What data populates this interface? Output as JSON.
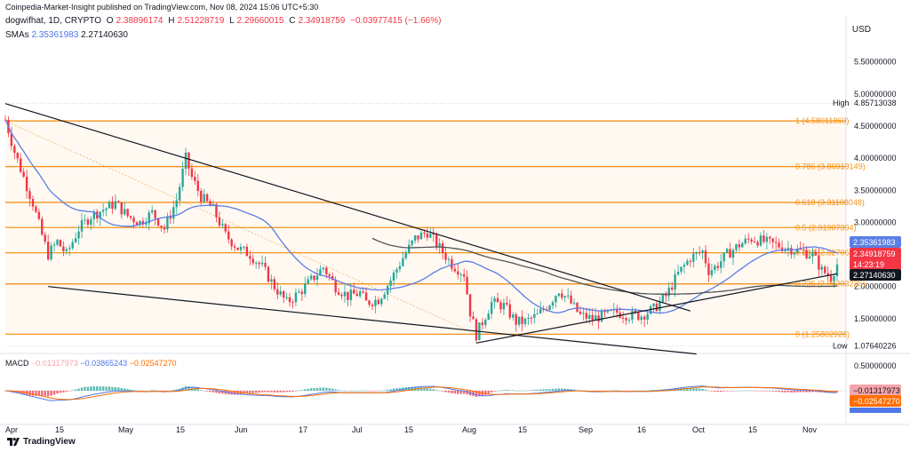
{
  "header": {
    "published": "Coinpedia-Market-Insight published on TradingView.com, Nov 08, 2024 15:06 UTC+5:30",
    "symbol": "dogwifhat, 1D, CRYPTO",
    "open_label": "O",
    "open": "2.38896174",
    "high_label": "H",
    "high": "2.51228719",
    "low_label": "L",
    "low": "2.29660015",
    "close_label": "C",
    "close": "2.34918759",
    "change": "−0.03977415 (−1.66%)",
    "sma_label": "SMAs",
    "sma1": "2.35361983",
    "sma2": "2.27140630",
    "currency": "USD"
  },
  "macd": {
    "label": "MACD",
    "hist": "−0.01317973",
    "macd": "−0.03865243",
    "signal": "−0.02547270"
  },
  "brand": {
    "name": "TradingView"
  },
  "colors": {
    "bull": "#26a69a",
    "bear": "#f23645",
    "sma_fast": "#5b7ee5",
    "sma_slow": "#545454",
    "fib": "#f7931a",
    "trend": "#131722",
    "macd_line": "#4f77e8",
    "signal_line": "#ff6d00"
  },
  "chart_data": {
    "type": "line",
    "x_ticks": [
      "Apr",
      "15",
      "May",
      "15",
      "Jun",
      "17",
      "Jul",
      "15",
      "Aug",
      "15",
      "Sep",
      "16",
      "Oct",
      "15",
      "Nov"
    ],
    "y_ticks": [
      "5.50000000",
      "5.00000000",
      "4.50000000",
      "4.00000000",
      "3.50000000",
      "3.00000000",
      "2.50000000",
      "2.00000000",
      "1.50000000"
    ],
    "macd_y_ticks": [
      "0.50000000"
    ],
    "ylim": [
      1.0,
      5.8
    ],
    "price_path": [
      [
        0,
        4.6
      ],
      [
        3,
        4.1
      ],
      [
        6,
        3.7
      ],
      [
        9,
        3.3
      ],
      [
        12,
        2.8
      ],
      [
        14,
        2.5
      ],
      [
        17,
        2.7
      ],
      [
        20,
        2.5
      ],
      [
        24,
        2.9
      ],
      [
        28,
        3.1
      ],
      [
        32,
        3.2
      ],
      [
        36,
        3.3
      ],
      [
        40,
        3.1
      ],
      [
        44,
        3.0
      ],
      [
        48,
        3.15
      ],
      [
        52,
        2.9
      ],
      [
        56,
        3.35
      ],
      [
        59,
        4.0
      ],
      [
        61,
        3.7
      ],
      [
        64,
        3.4
      ],
      [
        68,
        3.2
      ],
      [
        72,
        2.8
      ],
      [
        76,
        2.6
      ],
      [
        80,
        2.5
      ],
      [
        84,
        2.3
      ],
      [
        88,
        2.0
      ],
      [
        92,
        1.75
      ],
      [
        96,
        1.9
      ],
      [
        100,
        2.1
      ],
      [
        104,
        2.3
      ],
      [
        108,
        2.0
      ],
      [
        112,
        1.85
      ],
      [
        116,
        1.9
      ],
      [
        118,
        1.75
      ],
      [
        122,
        1.8
      ],
      [
        126,
        2.1
      ],
      [
        130,
        2.45
      ],
      [
        134,
        2.75
      ],
      [
        138,
        2.85
      ],
      [
        142,
        2.6
      ],
      [
        146,
        2.35
      ],
      [
        150,
        2.2
      ],
      [
        152,
        1.6
      ],
      [
        154,
        1.25
      ],
      [
        156,
        1.45
      ],
      [
        159,
        1.75
      ],
      [
        163,
        1.7
      ],
      [
        167,
        1.45
      ],
      [
        170,
        1.45
      ],
      [
        174,
        1.55
      ],
      [
        178,
        1.75
      ],
      [
        181,
        1.95
      ],
      [
        184,
        1.8
      ],
      [
        188,
        1.55
      ],
      [
        192,
        1.5
      ],
      [
        196,
        1.55
      ],
      [
        200,
        1.6
      ],
      [
        204,
        1.55
      ],
      [
        208,
        1.55
      ],
      [
        212,
        1.65
      ],
      [
        216,
        1.85
      ],
      [
        220,
        2.2
      ],
      [
        224,
        2.45
      ],
      [
        228,
        2.55
      ],
      [
        230,
        2.25
      ],
      [
        232,
        2.3
      ],
      [
        236,
        2.5
      ],
      [
        240,
        2.65
      ],
      [
        244,
        2.75
      ],
      [
        248,
        2.7
      ],
      [
        252,
        2.65
      ],
      [
        256,
        2.6
      ],
      [
        260,
        2.55
      ],
      [
        264,
        2.5
      ],
      [
        267,
        2.25
      ],
      [
        270,
        2.15
      ],
      [
        272,
        2.35
      ]
    ],
    "high_label": "High",
    "high_value": "4.85713038",
    "low_label": "Low",
    "low_value": "1.07640226",
    "current_close": "2.34918759",
    "countdown": "14:23:19",
    "fib_levels": [
      {
        "label": "1 (4.58011860)",
        "value": 4.5801186
      },
      {
        "label": "0.786 (3.86919149)",
        "value": 3.86919149
      },
      {
        "label": "0.618 (3.31108048)",
        "value": 3.31108048
      },
      {
        "label": "0.5 (2.91907394)",
        "value": 2.91907394
      },
      {
        "label": "0.382 (2.52706740)",
        "value": 2.5270674
      },
      {
        "label": "0.236 (2.04203236)",
        "value": 2.04203236
      },
      {
        "label": "0 (1.25802928)",
        "value": 1.25802928
      }
    ]
  }
}
